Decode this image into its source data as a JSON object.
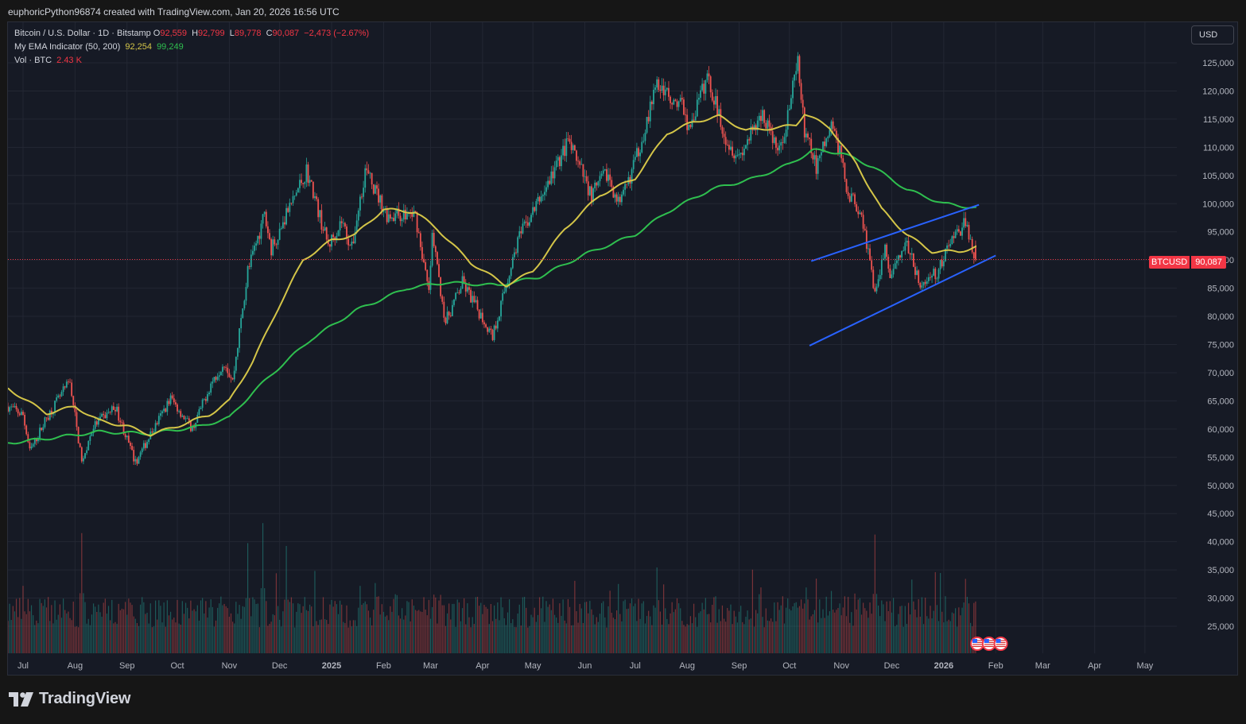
{
  "header": {
    "attribution": "euphoricPython96874 created with TradingView.com, Jan 20, 2026 16:56 UTC"
  },
  "legend": {
    "symbol_line": "Bitcoin / U.S. Dollar · 1D · Bitstamp",
    "open_label": "O",
    "open": "92,559",
    "high_label": "H",
    "high": "92,799",
    "low_label": "L",
    "low": "89,778",
    "close_label": "C",
    "close": "90,087",
    "change": "−2,473 (−2.67%)",
    "ema_label": "My EMA Indicator (50, 200)",
    "ema50": "92,254",
    "ema200": "99,249",
    "vol_label": "Vol · BTC",
    "vol_value": "2.43 K"
  },
  "currency_button": "USD",
  "price_tag": {
    "symbol": "BTCUSD",
    "value": "90,087"
  },
  "brand": {
    "name": "TradingView"
  },
  "colors": {
    "background": "#161a25",
    "up": "#26a69a",
    "down": "#ef5350",
    "ema50": "#d4c548",
    "ema200": "#2fbf4f",
    "trendline": "#2962ff",
    "price_line": "#f23645"
  },
  "chart_data": {
    "type": "candlestick",
    "title": "Bitcoin / U.S. Dollar · 1D · Bitstamp",
    "x_range": [
      "2024-06-22",
      "2026-05-20"
    ],
    "ylim": [
      20000,
      130000
    ],
    "y_ticks": [
      25000,
      30000,
      35000,
      40000,
      45000,
      50000,
      55000,
      60000,
      65000,
      70000,
      75000,
      80000,
      85000,
      90000,
      95000,
      100000,
      105000,
      110000,
      115000,
      120000,
      125000
    ],
    "y_tick_labels": [
      "25,000",
      "30,000",
      "35,000",
      "40,000",
      "45,000",
      "50,000",
      "55,000",
      "60,000",
      "65,000",
      "70,000",
      "75,000",
      "80,000",
      "85,000",
      "90,000",
      "95,000",
      "100,000",
      "105,000",
      "110,000",
      "115,000",
      "120,000",
      "125,000"
    ],
    "x_ticks": [
      {
        "date": "2024-07-01",
        "label": "Jul"
      },
      {
        "date": "2024-08-01",
        "label": "Aug"
      },
      {
        "date": "2024-09-01",
        "label": "Sep"
      },
      {
        "date": "2024-10-01",
        "label": "Oct"
      },
      {
        "date": "2024-11-01",
        "label": "Nov"
      },
      {
        "date": "2024-12-01",
        "label": "Dec"
      },
      {
        "date": "2025-01-01",
        "label": "2025",
        "bold": true
      },
      {
        "date": "2025-02-01",
        "label": "Feb"
      },
      {
        "date": "2025-03-01",
        "label": "Mar"
      },
      {
        "date": "2025-04-01",
        "label": "Apr"
      },
      {
        "date": "2025-05-01",
        "label": "May"
      },
      {
        "date": "2025-06-01",
        "label": "Jun"
      },
      {
        "date": "2025-07-01",
        "label": "Jul"
      },
      {
        "date": "2025-08-01",
        "label": "Aug"
      },
      {
        "date": "2025-09-01",
        "label": "Sep"
      },
      {
        "date": "2025-10-01",
        "label": "Oct"
      },
      {
        "date": "2025-11-01",
        "label": "Nov"
      },
      {
        "date": "2025-12-01",
        "label": "Dec"
      },
      {
        "date": "2026-01-01",
        "label": "2026",
        "bold": true
      },
      {
        "date": "2026-02-01",
        "label": "Feb"
      },
      {
        "date": "2026-03-01",
        "label": "Mar"
      },
      {
        "date": "2026-04-01",
        "label": "Apr"
      },
      {
        "date": "2026-05-01",
        "label": "May"
      }
    ],
    "close_anchors": [
      [
        "2024-06-22",
        64000
      ],
      [
        "2024-07-01",
        62500
      ],
      [
        "2024-07-05",
        56000
      ],
      [
        "2024-07-15",
        62000
      ],
      [
        "2024-07-29",
        68500
      ],
      [
        "2024-08-05",
        54000
      ],
      [
        "2024-08-12",
        60500
      ],
      [
        "2024-08-25",
        64000
      ],
      [
        "2024-09-06",
        54000
      ],
      [
        "2024-09-15",
        59000
      ],
      [
        "2024-09-27",
        65500
      ],
      [
        "2024-10-10",
        60000
      ],
      [
        "2024-10-21",
        68000
      ],
      [
        "2024-10-29",
        72000
      ],
      [
        "2024-11-03",
        68500
      ],
      [
        "2024-11-12",
        88000
      ],
      [
        "2024-11-22",
        98000
      ],
      [
        "2024-11-26",
        92000
      ],
      [
        "2024-12-05",
        98000
      ],
      [
        "2024-12-17",
        106000
      ],
      [
        "2024-12-30",
        92500
      ],
      [
        "2025-01-07",
        97000
      ],
      [
        "2025-01-13",
        92000
      ],
      [
        "2025-01-21",
        106000
      ],
      [
        "2025-02-03",
        98000
      ],
      [
        "2025-02-20",
        98000
      ],
      [
        "2025-02-28",
        84000
      ],
      [
        "2025-03-02",
        94000
      ],
      [
        "2025-03-10",
        79000
      ],
      [
        "2025-03-20",
        86000
      ],
      [
        "2025-04-07",
        76500
      ],
      [
        "2025-04-22",
        93500
      ],
      [
        "2025-05-09",
        103000
      ],
      [
        "2025-05-22",
        111000
      ],
      [
        "2025-06-05",
        101500
      ],
      [
        "2025-06-14",
        105500
      ],
      [
        "2025-06-22",
        99500
      ],
      [
        "2025-07-03",
        109500
      ],
      [
        "2025-07-14",
        121000
      ],
      [
        "2025-07-30",
        117000
      ],
      [
        "2025-08-02",
        113000
      ],
      [
        "2025-08-13",
        122500
      ],
      [
        "2025-08-25",
        111000
      ],
      [
        "2025-09-01",
        108500
      ],
      [
        "2025-09-15",
        116000
      ],
      [
        "2025-09-25",
        109000
      ],
      [
        "2025-10-06",
        124500
      ],
      [
        "2025-10-10",
        113000
      ],
      [
        "2025-10-17",
        106500
      ],
      [
        "2025-10-27",
        114500
      ],
      [
        "2025-11-05",
        102000
      ],
      [
        "2025-11-13",
        98500
      ],
      [
        "2025-11-21",
        84000
      ],
      [
        "2025-11-27",
        91500
      ],
      [
        "2025-12-01",
        86500
      ],
      [
        "2025-12-09",
        93500
      ],
      [
        "2025-12-18",
        85500
      ],
      [
        "2025-12-29",
        88000
      ],
      [
        "2026-01-05",
        93500
      ],
      [
        "2026-01-14",
        96500
      ],
      [
        "2026-01-20",
        90087
      ]
    ],
    "ema50_anchors": [
      [
        "2024-06-22",
        67200
      ],
      [
        "2024-07-15",
        62800
      ],
      [
        "2024-08-01",
        64000
      ],
      [
        "2024-08-15",
        61500
      ],
      [
        "2024-09-01",
        60500
      ],
      [
        "2024-09-15",
        59000
      ],
      [
        "2024-10-01",
        60500
      ],
      [
        "2024-10-20",
        62500
      ],
      [
        "2024-11-01",
        65000
      ],
      [
        "2024-11-15",
        72000
      ],
      [
        "2024-12-01",
        82000
      ],
      [
        "2024-12-15",
        90000
      ],
      [
        "2025-01-01",
        93500
      ],
      [
        "2025-01-15",
        94500
      ],
      [
        "2025-02-01",
        99000
      ],
      [
        "2025-02-20",
        98500
      ],
      [
        "2025-03-05",
        95500
      ],
      [
        "2025-03-25",
        89500
      ],
      [
        "2025-04-15",
        85500
      ],
      [
        "2025-05-01",
        88000
      ],
      [
        "2025-05-20",
        95500
      ],
      [
        "2025-06-10",
        101500
      ],
      [
        "2025-07-01",
        104500
      ],
      [
        "2025-07-20",
        112500
      ],
      [
        "2025-08-05",
        114500
      ],
      [
        "2025-08-20",
        115500
      ],
      [
        "2025-09-05",
        113000
      ],
      [
        "2025-09-25",
        113500
      ],
      [
        "2025-10-05",
        114000
      ],
      [
        "2025-10-10",
        116000
      ],
      [
        "2025-10-25",
        113500
      ],
      [
        "2025-11-10",
        107000
      ],
      [
        "2025-11-25",
        99000
      ],
      [
        "2025-12-10",
        94500
      ],
      [
        "2025-12-25",
        91500
      ],
      [
        "2026-01-10",
        91500
      ],
      [
        "2026-01-20",
        92254
      ]
    ],
    "ema200_anchors": [
      [
        "2024-06-22",
        57500
      ],
      [
        "2024-07-15",
        58300
      ],
      [
        "2024-08-15",
        59500
      ],
      [
        "2024-09-15",
        59200
      ],
      [
        "2024-10-15",
        60500
      ],
      [
        "2024-11-01",
        62000
      ],
      [
        "2024-11-15",
        66500
      ],
      [
        "2024-12-01",
        71000
      ],
      [
        "2024-12-20",
        76000
      ],
      [
        "2025-01-15",
        81000
      ],
      [
        "2025-02-15",
        85000
      ],
      [
        "2025-03-10",
        86000
      ],
      [
        "2025-04-10",
        85500
      ],
      [
        "2025-05-05",
        87000
      ],
      [
        "2025-06-01",
        91000
      ],
      [
        "2025-07-01",
        94500
      ],
      [
        "2025-07-20",
        98500
      ],
      [
        "2025-08-15",
        102500
      ],
      [
        "2025-09-10",
        104500
      ],
      [
        "2025-10-01",
        107000
      ],
      [
        "2025-10-15",
        109500
      ],
      [
        "2025-11-01",
        109000
      ],
      [
        "2025-11-20",
        106500
      ],
      [
        "2025-12-10",
        102500
      ],
      [
        "2026-01-01",
        100000
      ],
      [
        "2026-01-20",
        99249
      ]
    ],
    "trendlines": [
      {
        "from": [
          "2025-10-14",
          89800
        ],
        "to": [
          "2026-01-22",
          99800
        ]
      },
      {
        "from": [
          "2025-10-13",
          74800
        ],
        "to": [
          "2026-02-01",
          90800
        ]
      }
    ],
    "last_price": 90087,
    "volume_relative_peaks": [
      [
        "2024-08-05",
        0.84
      ],
      [
        "2024-11-12",
        0.77
      ],
      [
        "2024-11-21",
        0.91
      ],
      [
        "2024-12-05",
        0.75
      ],
      [
        "2025-03-03",
        0.41
      ],
      [
        "2025-07-14",
        0.6
      ],
      [
        "2025-10-11",
        0.46
      ],
      [
        "2025-11-21",
        0.83
      ],
      [
        "2026-01-14",
        0.52
      ]
    ],
    "event_flags": [
      "2026-01-21",
      "2026-01-28",
      "2026-02-04"
    ]
  }
}
